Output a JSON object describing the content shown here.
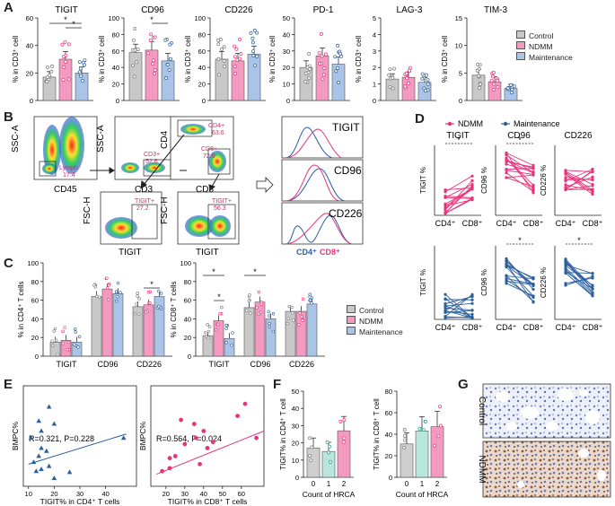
{
  "colors": {
    "control": "#c8c8c8",
    "ndmm": "#f49ac1",
    "maintenance": "#a9c4e6",
    "ndmm_line": "#e8337a",
    "maint_line": "#2c5f9e",
    "teal": "#b8e6dc"
  },
  "panels": {
    "A": "A",
    "B": "B",
    "C": "C",
    "D": "D",
    "E": "E",
    "F": "F",
    "G": "G"
  },
  "legend": {
    "control": "Control",
    "ndmm": "NDMM",
    "maintenance": "Maintenance"
  },
  "panelA": [
    {
      "title": "TIGIT",
      "ylabel": "% in CD3⁺ cell",
      "ymax": 60,
      "ticks": [
        "0",
        "20",
        "40",
        "60"
      ],
      "values": [
        17,
        30,
        20
      ],
      "sig": [
        "*",
        "*"
      ]
    },
    {
      "title": "CD96",
      "ylabel": "% in CD3⁺ cell",
      "ymax": 100,
      "ticks": [
        "0",
        "20",
        "40",
        "60",
        "80",
        "100"
      ],
      "values": [
        58,
        61,
        48
      ],
      "sig": [
        "*"
      ]
    },
    {
      "title": "CD226",
      "ylabel": "% in CD3⁺ cell",
      "ymax": 100,
      "ticks": [
        "0",
        "20",
        "40",
        "60",
        "80",
        "100"
      ],
      "values": [
        50,
        48,
        56
      ],
      "sig": []
    },
    {
      "title": "PD-1",
      "ylabel": "% in CD3⁺ cell",
      "ymax": 50,
      "ticks": [
        "0",
        "10",
        "20",
        "30",
        "40",
        "50"
      ],
      "values": [
        20,
        27,
        22
      ],
      "sig": []
    },
    {
      "title": "LAG-3",
      "ylabel": "% in CD3⁺ cell",
      "ymax": 5,
      "ticks": [
        "0",
        "1",
        "2",
        "3",
        "4",
        "5"
      ],
      "values": [
        1.3,
        1.4,
        1.1
      ],
      "sig": []
    },
    {
      "title": "TIM-3",
      "ylabel": "% in CD3⁺ cell",
      "ymax": 15,
      "ticks": [
        "0",
        "5",
        "10",
        "15"
      ],
      "values": [
        4.6,
        3.4,
        2.2
      ],
      "sig": []
    }
  ],
  "panelB": {
    "plot1": {
      "y": "SSC-A",
      "x": "CD45",
      "gate": "Lymph",
      "value": "17.4"
    },
    "plot2": {
      "y": "SSC-A",
      "x": "CD3",
      "gate": "CD3+",
      "value": "52.6"
    },
    "plot3": {
      "y": "CD4",
      "x": "CD8",
      "gate1": "CD4+",
      "value1": "63.6",
      "gate2": "CD8+",
      "value2": "72.0"
    },
    "plot4": {
      "y": "FSC-H",
      "x": "TIGIT",
      "gate": "TIGIT+",
      "value": "27.2"
    },
    "plot5": {
      "y": "FSC-H",
      "x": "TIGIT",
      "gate": "TIGIT+",
      "value": "56.3"
    },
    "hist": [
      "TIGIT",
      "CD96",
      "CD226"
    ],
    "hist_legend": {
      "cd4": "CD4⁺",
      "cd8": "CD8⁺"
    }
  },
  "panelC": {
    "left": {
      "ylabel": "% in CD4⁺ T cells",
      "categories": [
        "TIGIT",
        "CD96",
        "CD226"
      ],
      "ticks": [
        "0",
        "20",
        "40",
        "60",
        "80",
        "100"
      ],
      "ymax": 100,
      "series": {
        "control": [
          15,
          64,
          53
        ],
        "ndmm": [
          17,
          72,
          55
        ],
        "maintenance": [
          15,
          67,
          64
        ]
      }
    },
    "right": {
      "ylabel": "% in CD8⁺ T cells",
      "categories": [
        "TIGIT",
        "CD96",
        "CD226"
      ],
      "ticks": [
        "0",
        "20",
        "40",
        "60",
        "80",
        "100"
      ],
      "ymax": 100,
      "series": {
        "control": [
          22,
          52,
          48
        ],
        "ndmm": [
          38,
          58,
          48
        ],
        "maintenance": [
          19,
          40,
          56
        ]
      }
    }
  },
  "panelD": {
    "legend": {
      "ndmm": "NDMM",
      "maint": "Maintenance"
    },
    "titles": [
      "TIGIT",
      "CD96",
      "CD226"
    ],
    "ylabels": [
      "TIGIT %",
      "CD96 %",
      "CD226 %"
    ],
    "xcats": [
      "CD4⁺",
      "CD8⁺"
    ],
    "sig": "*"
  },
  "panelE": {
    "left": {
      "annot": "R=0.321, P=0.228",
      "xlabel": "TIGIT% in CD4⁺ T cells",
      "ylabel": "BMPC%",
      "xticks": [
        "10",
        "20",
        "30",
        "40"
      ],
      "points": [
        [
          18,
          79
        ],
        [
          14,
          65
        ],
        [
          20,
          62
        ],
        [
          15,
          55
        ],
        [
          11,
          48
        ],
        [
          15,
          38
        ],
        [
          17,
          35
        ],
        [
          14,
          30
        ],
        [
          12,
          24
        ],
        [
          18,
          20
        ],
        [
          15,
          17
        ],
        [
          13,
          15
        ],
        [
          26,
          14
        ],
        [
          20,
          8
        ],
        [
          47,
          48
        ]
      ],
      "fit": [
        [
          10,
          22
        ],
        [
          48,
          52
        ]
      ]
    },
    "right": {
      "annot": "R=0.564, P=0.024",
      "xlabel": "TIGIT% in CD8⁺ T cells",
      "ylabel": "BMPC%",
      "xticks": [
        "20",
        "30",
        "40",
        "50",
        "60"
      ],
      "points": [
        [
          62,
          82
        ],
        [
          58,
          70
        ],
        [
          28,
          66
        ],
        [
          35,
          62
        ],
        [
          40,
          55
        ],
        [
          36,
          48
        ],
        [
          45,
          44
        ],
        [
          30,
          42
        ],
        [
          42,
          38
        ],
        [
          25,
          30
        ],
        [
          22,
          28
        ],
        [
          38,
          22
        ],
        [
          22,
          18
        ],
        [
          18,
          15
        ],
        [
          68,
          48
        ]
      ],
      "fit": [
        [
          15,
          12
        ],
        [
          72,
          55
        ]
      ]
    }
  },
  "panelF": {
    "xlabel": "Count of HRCA",
    "left": {
      "ylabel": "TIGIT% in CD4⁺ T cell",
      "ticks": [
        "0",
        "10",
        "20",
        "30",
        "40",
        "50"
      ],
      "ymax": 50,
      "categories": [
        "0",
        "1",
        "2"
      ],
      "values": [
        17,
        15,
        27
      ]
    },
    "right": {
      "ylabel": "TIGIT% in CD8⁺ T cell",
      "ticks": [
        "0",
        "20",
        "40",
        "60",
        "80"
      ],
      "ymax": 80,
      "categories": [
        "0",
        "1",
        "2"
      ],
      "values": [
        31,
        43,
        47
      ]
    }
  },
  "panelG": {
    "top": "Control",
    "bottom": "NDMM"
  }
}
